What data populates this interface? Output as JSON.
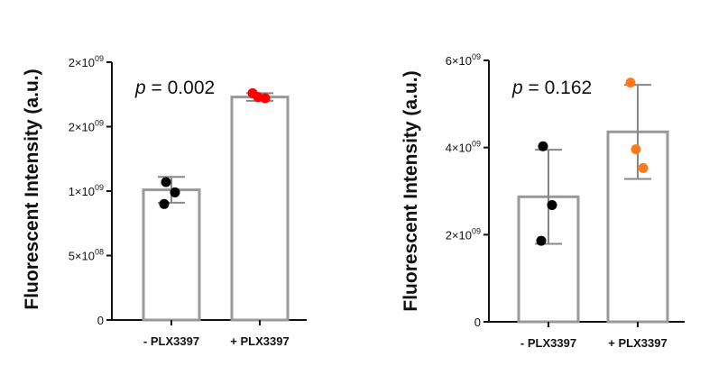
{
  "chart_data": [
    {
      "type": "bar",
      "ylabel": "Fluorescent Intensity (a.u.)",
      "annotation": {
        "p_symbol": "p",
        "p_text": " = 0.002"
      },
      "categories": [
        "- PLX3397",
        "+ PLX3397"
      ],
      "means": [
        1010000000,
        1730000000
      ],
      "errors": [
        100000000,
        30000000
      ],
      "points": [
        [
          1070000000,
          990000000,
          900000000
        ],
        [
          1760000000,
          1730000000,
          1720000000
        ]
      ],
      "point_colors": [
        "#000000",
        "#ff0000"
      ],
      "ylim": [
        0,
        2000000000
      ],
      "yticks": [
        {
          "value": 0,
          "label": "0",
          "sup": ""
        },
        {
          "value": 500000000,
          "label": "5×10",
          "sup": "08"
        },
        {
          "value": 1000000000,
          "label": "1×10",
          "sup": "09"
        },
        {
          "value": 1500000000,
          "label": "2×10",
          "sup": "09"
        },
        {
          "value": 2000000000,
          "label": "2×10",
          "sup": "09"
        }
      ]
    },
    {
      "type": "bar",
      "ylabel": "Fluorescent Intensity (a.u.)",
      "annotation": {
        "p_symbol": "p",
        "p_text": " = 0.162"
      },
      "categories": [
        "- PLX3397",
        "+ PLX3397"
      ],
      "means": [
        2870000000,
        4360000000
      ],
      "errors": [
        1080000000,
        1080000000
      ],
      "points": [
        [
          4030000000,
          2680000000,
          1860000000
        ],
        [
          5490000000,
          3960000000,
          3530000000
        ]
      ],
      "point_colors": [
        "#000000",
        "#ff7a1a"
      ],
      "ylim": [
        0,
        6000000000
      ],
      "yticks": [
        {
          "value": 0,
          "label": "0",
          "sup": ""
        },
        {
          "value": 2000000000,
          "label": "2×10",
          "sup": "09"
        },
        {
          "value": 4000000000,
          "label": "4×10",
          "sup": "09"
        },
        {
          "value": 6000000000,
          "label": "6×10",
          "sup": "09"
        }
      ]
    }
  ]
}
